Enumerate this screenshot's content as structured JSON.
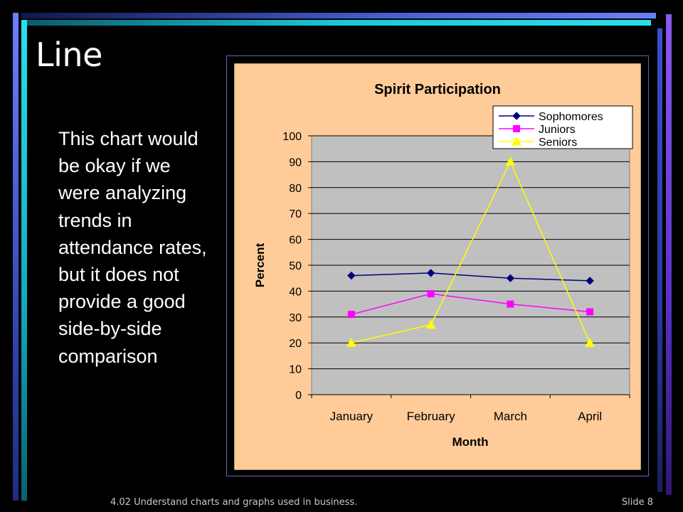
{
  "slide": {
    "title": "Line",
    "body": "This chart would be okay if we were analyzing trends in attendance rates, but it does not provide a good side-by-side comparison",
    "footer": "4.02 Understand charts and graphs used in business.",
    "slide_number": "Slide 8"
  },
  "colors": {
    "chart_background": "#ffcc99",
    "plot_background": "#c0c0c0",
    "frame_border": "#5a6ab8",
    "accent_cyan": "#19c8d8",
    "accent_purple": "#7040e0"
  },
  "chart_data": {
    "type": "line",
    "title": "Spirit Participation",
    "xlabel": "Month",
    "ylabel": "Percent",
    "categories": [
      "January",
      "February",
      "March",
      "April"
    ],
    "ylim": [
      0,
      100
    ],
    "yticks": [
      0,
      10,
      20,
      30,
      40,
      50,
      60,
      70,
      80,
      90,
      100
    ],
    "grid": true,
    "legend_position": "top-right",
    "series": [
      {
        "name": "Sophomores",
        "color": "#000080",
        "marker": "diamond",
        "values": [
          46,
          47,
          45,
          44
        ]
      },
      {
        "name": "Juniors",
        "color": "#ff00ff",
        "marker": "square",
        "values": [
          31,
          39,
          35,
          32
        ]
      },
      {
        "name": "Seniors",
        "color": "#ffff00",
        "marker": "triangle",
        "values": [
          20,
          27,
          90,
          20
        ]
      }
    ]
  }
}
